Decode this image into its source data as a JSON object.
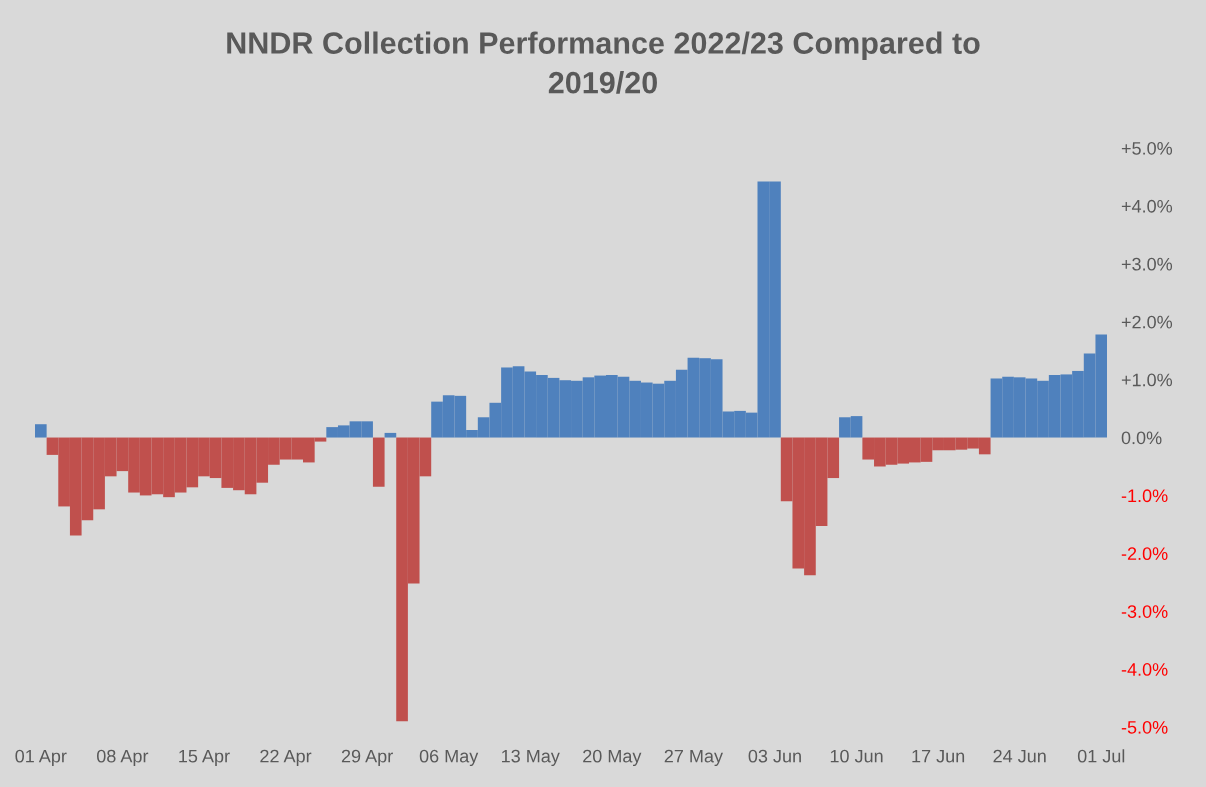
{
  "chart_data": {
    "type": "bar",
    "title": "NNDR Collection Performance 2022/23 Compared to 2019/20",
    "categories": [
      "01 Apr",
      null,
      null,
      null,
      null,
      null,
      null,
      "08 Apr",
      null,
      null,
      null,
      null,
      null,
      null,
      "15 Apr",
      null,
      null,
      null,
      null,
      null,
      null,
      "22 Apr",
      null,
      null,
      null,
      null,
      null,
      null,
      "29 Apr",
      null,
      null,
      null,
      null,
      null,
      null,
      "06 May",
      null,
      null,
      null,
      null,
      null,
      null,
      "13 May",
      null,
      null,
      null,
      null,
      null,
      null,
      "20 May",
      null,
      null,
      null,
      null,
      null,
      null,
      "27 May",
      null,
      null,
      null,
      null,
      null,
      null,
      "03 Jun",
      null,
      null,
      null,
      null,
      null,
      null,
      "10 Jun",
      null,
      null,
      null,
      null,
      null,
      null,
      "17 Jun",
      null,
      null,
      null,
      null,
      null,
      null,
      "24 Jun",
      null,
      null,
      null,
      null,
      null,
      null,
      "01 Jul"
    ],
    "values": [
      0.23,
      -0.3,
      -1.19,
      -1.69,
      -1.43,
      -1.24,
      -0.67,
      -0.58,
      -0.95,
      -1.0,
      -0.98,
      -1.03,
      -0.95,
      -0.86,
      -0.67,
      -0.7,
      -0.87,
      -0.91,
      -0.98,
      -0.78,
      -0.47,
      -0.38,
      -0.38,
      -0.43,
      -0.07,
      0.18,
      0.21,
      0.28,
      0.28,
      -0.85,
      0.08,
      -4.9,
      -2.52,
      -0.67,
      0.62,
      0.73,
      0.72,
      0.13,
      0.35,
      0.6,
      1.21,
      1.23,
      1.14,
      1.08,
      1.03,
      0.99,
      0.98,
      1.04,
      1.07,
      1.08,
      1.05,
      0.98,
      0.95,
      0.93,
      0.98,
      1.17,
      1.38,
      1.37,
      1.35,
      0.45,
      0.46,
      0.43,
      4.42,
      4.42,
      -1.1,
      -2.26,
      -2.38,
      -1.53,
      -0.7,
      0.35,
      0.37,
      -0.38,
      -0.5,
      -0.47,
      -0.45,
      -0.43,
      -0.42,
      -0.22,
      -0.22,
      -0.21,
      -0.19,
      -0.29,
      1.02,
      1.05,
      1.04,
      1.02,
      0.98,
      1.08,
      1.09,
      1.15,
      1.45,
      1.78
    ],
    "colors": [
      "#4f81bd",
      "#c0504d",
      "#c0504d",
      "#c0504d",
      "#c0504d",
      "#c0504d",
      "#c0504d",
      "#c0504d",
      "#c0504d",
      "#c0504d",
      "#c0504d",
      "#c0504d",
      "#c0504d",
      "#c0504d",
      "#c0504d",
      "#c0504d",
      "#c0504d",
      "#c0504d",
      "#c0504d",
      "#c0504d",
      "#c0504d",
      "#c0504d",
      "#c0504d",
      "#c0504d",
      "#c0504d",
      "#4f81bd",
      "#4f81bd",
      "#4f81bd",
      "#4f81bd",
      "#c0504d",
      "#4f81bd",
      "#c0504d",
      "#c0504d",
      "#c0504d",
      "#4f81bd",
      "#4f81bd",
      "#4f81bd",
      "#4f81bd",
      "#4f81bd",
      "#4f81bd",
      "#4f81bd",
      "#4f81bd",
      "#4f81bd",
      "#4f81bd",
      "#4f81bd",
      "#4f81bd",
      "#4f81bd",
      "#4f81bd",
      "#4f81bd",
      "#4f81bd",
      "#4f81bd",
      "#4f81bd",
      "#4f81bd",
      "#4f81bd",
      "#4f81bd",
      "#4f81bd",
      "#4f81bd",
      "#4f81bd",
      "#4f81bd",
      "#4f81bd",
      "#4f81bd",
      "#4f81bd",
      "#4f81bd",
      "#4f81bd",
      "#c0504d",
      "#c0504d",
      "#c0504d",
      "#c0504d",
      "#c0504d",
      "#4f81bd",
      "#4f81bd",
      "#c0504d",
      "#c0504d",
      "#c0504d",
      "#c0504d",
      "#c0504d",
      "#c0504d",
      "#c0504d",
      "#c0504d",
      "#c0504d",
      "#c0504d",
      "#c0504d",
      "#4f81bd",
      "#4f81bd",
      "#4f81bd",
      "#4f81bd",
      "#4f81bd",
      "#4f81bd",
      "#4f81bd",
      "#4f81bd",
      "#4f81bd",
      "#4f81bd"
    ],
    "ylim": [
      -5,
      5
    ],
    "yticks": [
      {
        "value": 5,
        "label": "+5.0%"
      },
      {
        "value": 4,
        "label": "+4.0%"
      },
      {
        "value": 3,
        "label": "+3.0%"
      },
      {
        "value": 2,
        "label": "+2.0%"
      },
      {
        "value": 1,
        "label": "+1.0%"
      },
      {
        "value": 0,
        "label": "0.0%"
      },
      {
        "value": -1,
        "label": "-1.0%"
      },
      {
        "value": -2,
        "label": "-2.0%"
      },
      {
        "value": -3,
        "label": "-3.0%"
      },
      {
        "value": -4,
        "label": "-4.0%"
      },
      {
        "value": -5,
        "label": "-5.0%"
      }
    ],
    "grid": false
  }
}
